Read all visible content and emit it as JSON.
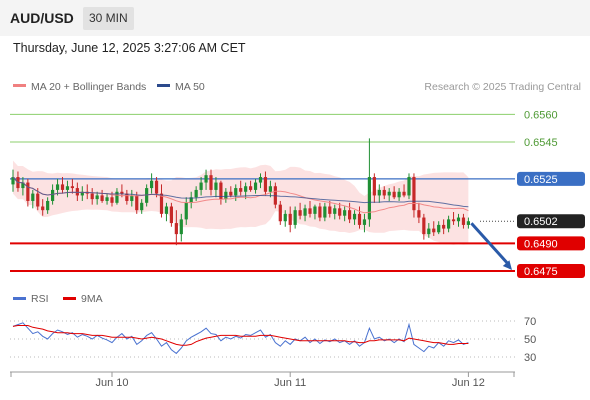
{
  "header": {
    "symbol": "AUD/USD",
    "timeframe": "30 MIN"
  },
  "datetime": "Thursday, June 12, 2025 3:27:06 AM CET",
  "credit": "Research © 2025 Trading Central",
  "colors": {
    "bollinger": "#f08080",
    "bollinger_band_fill": "#fbdddd",
    "ma50": "#2c4a8c",
    "green_level": "#8ccf6c",
    "blue_level": "#3a6fc4",
    "red_level": "#e00000",
    "candle_up": "#1f8f34",
    "candle_down": "#c62828",
    "rsi": "#4a72d0",
    "rsi_ma": "#e00000",
    "forecast_arrow": "#2a5aa8"
  },
  "chart_data": {
    "type": "candlestick",
    "symbol": "AUD/USD",
    "interval": "30 MIN",
    "legend": [
      {
        "name": "MA 20 + Bollinger Bands",
        "color": "#f08080"
      },
      {
        "name": "MA 50",
        "color": "#2c4a8c"
      }
    ],
    "y_range": [
      0.6469,
      0.657
    ],
    "levels": [
      {
        "value": "0.6560",
        "kind": "resistance",
        "color": "#8ccf6c"
      },
      {
        "value": "0.6545",
        "kind": "resistance",
        "color": "#8ccf6c"
      },
      {
        "value": "0.6525",
        "kind": "pivot",
        "color": "#3a6fc4"
      },
      {
        "value": "0.6502",
        "kind": "last_price",
        "color": "#222222"
      },
      {
        "value": "0.6490",
        "kind": "support",
        "color": "#e00000"
      },
      {
        "value": "0.6475",
        "kind": "support",
        "color": "#e00000"
      }
    ],
    "forecast": {
      "from": 0.6502,
      "to": 0.6475
    },
    "x_labels": [
      {
        "label": "Jun 10",
        "index": 20
      },
      {
        "label": "Jun 11",
        "index": 56
      },
      {
        "label": "Jun 12",
        "index": 92
      }
    ],
    "candles": [
      [
        0.6522,
        0.653,
        0.6518,
        0.6526
      ],
      [
        0.6526,
        0.6529,
        0.6518,
        0.652
      ],
      [
        0.652,
        0.6526,
        0.6516,
        0.6523
      ],
      [
        0.6523,
        0.6525,
        0.651,
        0.6513
      ],
      [
        0.6513,
        0.6519,
        0.6509,
        0.6517
      ],
      [
        0.6517,
        0.652,
        0.6508,
        0.651
      ],
      [
        0.651,
        0.6514,
        0.6505,
        0.6508
      ],
      [
        0.6508,
        0.6515,
        0.6506,
        0.6513
      ],
      [
        0.6513,
        0.6522,
        0.6511,
        0.6519
      ],
      [
        0.6519,
        0.6525,
        0.6516,
        0.6522
      ],
      [
        0.6522,
        0.6526,
        0.6517,
        0.6519
      ],
      [
        0.6519,
        0.6524,
        0.6515,
        0.6521
      ],
      [
        0.6521,
        0.6525,
        0.6517,
        0.652
      ],
      [
        0.652,
        0.6523,
        0.6513,
        0.6516
      ],
      [
        0.6516,
        0.6521,
        0.6513,
        0.6518
      ],
      [
        0.6518,
        0.6522,
        0.6514,
        0.6517
      ],
      [
        0.6517,
        0.652,
        0.6511,
        0.6514
      ],
      [
        0.6514,
        0.6518,
        0.6511,
        0.6516
      ],
      [
        0.6516,
        0.6519,
        0.6512,
        0.6513
      ],
      [
        0.6513,
        0.6517,
        0.6511,
        0.6515
      ],
      [
        0.6515,
        0.6518,
        0.651,
        0.6512
      ],
      [
        0.6512,
        0.652,
        0.6511,
        0.6518
      ],
      [
        0.6518,
        0.6522,
        0.6515,
        0.6517
      ],
      [
        0.6517,
        0.6519,
        0.6511,
        0.6513
      ],
      [
        0.6513,
        0.6519,
        0.651,
        0.6516
      ],
      [
        0.6516,
        0.6518,
        0.6506,
        0.6508
      ],
      [
        0.6508,
        0.6514,
        0.6506,
        0.6512
      ],
      [
        0.6512,
        0.6522,
        0.651,
        0.652
      ],
      [
        0.652,
        0.6528,
        0.6517,
        0.6524
      ],
      [
        0.6524,
        0.6526,
        0.6515,
        0.6517
      ],
      [
        0.6517,
        0.6522,
        0.6504,
        0.6506
      ],
      [
        0.6506,
        0.6512,
        0.6502,
        0.651
      ],
      [
        0.651,
        0.6512,
        0.6499,
        0.6501
      ],
      [
        0.6501,
        0.6508,
        0.6489,
        0.6495
      ],
      [
        0.6495,
        0.6506,
        0.6491,
        0.6503
      ],
      [
        0.6503,
        0.6515,
        0.65,
        0.6512
      ],
      [
        0.6512,
        0.6518,
        0.6509,
        0.6515
      ],
      [
        0.6515,
        0.6521,
        0.6513,
        0.6519
      ],
      [
        0.6519,
        0.6526,
        0.6516,
        0.6523
      ],
      [
        0.6523,
        0.653,
        0.6519,
        0.6527
      ],
      [
        0.6527,
        0.653,
        0.6516,
        0.6519
      ],
      [
        0.6519,
        0.6526,
        0.6515,
        0.6523
      ],
      [
        0.6523,
        0.6524,
        0.6511,
        0.6514
      ],
      [
        0.6514,
        0.652,
        0.6512,
        0.6518
      ],
      [
        0.6518,
        0.6521,
        0.6515,
        0.6516
      ],
      [
        0.6516,
        0.6522,
        0.6513,
        0.652
      ],
      [
        0.652,
        0.6524,
        0.6516,
        0.6518
      ],
      [
        0.6518,
        0.6523,
        0.6514,
        0.6521
      ],
      [
        0.6521,
        0.6524,
        0.6518,
        0.6519
      ],
      [
        0.6519,
        0.6525,
        0.6517,
        0.6523
      ],
      [
        0.6523,
        0.6528,
        0.652,
        0.6526
      ],
      [
        0.6526,
        0.6529,
        0.6516,
        0.6518
      ],
      [
        0.6518,
        0.6524,
        0.6515,
        0.6521
      ],
      [
        0.6521,
        0.6523,
        0.6509,
        0.6511
      ],
      [
        0.6511,
        0.6513,
        0.65,
        0.6502
      ],
      [
        0.6502,
        0.6508,
        0.6499,
        0.6506
      ],
      [
        0.6506,
        0.651,
        0.6496,
        0.65
      ],
      [
        0.65,
        0.651,
        0.6498,
        0.6508
      ],
      [
        0.6508,
        0.6512,
        0.6503,
        0.6505
      ],
      [
        0.6505,
        0.6511,
        0.6502,
        0.6509
      ],
      [
        0.6509,
        0.6513,
        0.6504,
        0.6506
      ],
      [
        0.6506,
        0.6511,
        0.6503,
        0.651
      ],
      [
        0.651,
        0.6512,
        0.6502,
        0.6504
      ],
      [
        0.6504,
        0.6512,
        0.6502,
        0.651
      ],
      [
        0.651,
        0.6513,
        0.6504,
        0.6506
      ],
      [
        0.6506,
        0.6511,
        0.6503,
        0.6509
      ],
      [
        0.6509,
        0.6512,
        0.6503,
        0.6505
      ],
      [
        0.6505,
        0.651,
        0.6502,
        0.6508
      ],
      [
        0.6508,
        0.6512,
        0.6501,
        0.6503
      ],
      [
        0.6503,
        0.6508,
        0.65,
        0.6506
      ],
      [
        0.6506,
        0.651,
        0.6498,
        0.65
      ],
      [
        0.65,
        0.6506,
        0.6496,
        0.6503
      ],
      [
        0.6503,
        0.6547,
        0.6499,
        0.6526
      ],
      [
        0.6526,
        0.6528,
        0.6512,
        0.6516
      ],
      [
        0.6516,
        0.6522,
        0.6512,
        0.6519
      ],
      [
        0.6519,
        0.6521,
        0.6514,
        0.6516
      ],
      [
        0.6516,
        0.652,
        0.6513,
        0.6518
      ],
      [
        0.6518,
        0.6521,
        0.6514,
        0.6515
      ],
      [
        0.6515,
        0.652,
        0.6513,
        0.6518
      ],
      [
        0.6518,
        0.6522,
        0.6515,
        0.6516
      ],
      [
        0.6516,
        0.6528,
        0.6514,
        0.6526
      ],
      [
        0.6526,
        0.6528,
        0.6504,
        0.6508
      ],
      [
        0.6508,
        0.6512,
        0.6501,
        0.6504
      ],
      [
        0.6504,
        0.6506,
        0.6492,
        0.6495
      ],
      [
        0.6495,
        0.6501,
        0.6493,
        0.6498
      ],
      [
        0.6498,
        0.6502,
        0.6494,
        0.6496
      ],
      [
        0.6496,
        0.6502,
        0.6495,
        0.65
      ],
      [
        0.65,
        0.6503,
        0.6495,
        0.6498
      ],
      [
        0.6498,
        0.6505,
        0.6496,
        0.6503
      ],
      [
        0.6503,
        0.6507,
        0.65,
        0.6502
      ],
      [
        0.6502,
        0.6506,
        0.6499,
        0.6504
      ],
      [
        0.6504,
        0.6506,
        0.6498,
        0.65
      ],
      [
        0.65,
        0.6504,
        0.6498,
        0.6502
      ]
    ],
    "rsi_panel": {
      "legend": [
        {
          "name": "RSI",
          "color": "#4a72d0"
        },
        {
          "name": "9MA",
          "color": "#e00000"
        }
      ],
      "y_ticks": [
        "70",
        "50",
        "30"
      ],
      "y_range": [
        20,
        80
      ],
      "rsi": [
        64,
        66,
        68,
        62,
        56,
        58,
        53,
        50,
        56,
        60,
        58,
        55,
        57,
        52,
        55,
        53,
        50,
        54,
        51,
        49,
        46,
        52,
        56,
        50,
        53,
        44,
        48,
        54,
        57,
        50,
        42,
        46,
        38,
        34,
        40,
        48,
        52,
        55,
        58,
        62,
        56,
        55,
        48,
        52,
        50,
        53,
        51,
        55,
        54,
        57,
        60,
        52,
        55,
        46,
        42,
        48,
        44,
        50,
        48,
        52,
        46,
        50,
        45,
        49,
        47,
        50,
        46,
        48,
        44,
        48,
        42,
        46,
        62,
        50,
        52,
        48,
        50,
        46,
        50,
        47,
        66,
        44,
        40,
        36,
        42,
        40,
        46,
        42,
        48,
        46,
        49,
        44,
        46
      ],
      "ma": [
        64,
        65,
        65,
        65,
        63,
        62,
        61,
        59,
        58,
        57,
        57,
        57,
        56,
        56,
        56,
        55,
        54,
        54,
        54,
        53,
        52,
        52,
        52,
        52,
        52,
        51,
        50,
        51,
        52,
        51,
        50,
        48,
        46,
        44,
        43,
        43,
        44,
        47,
        49,
        51,
        52,
        53,
        54,
        54,
        54,
        54,
        53,
        53,
        53,
        53,
        54,
        54,
        54,
        53,
        52,
        51,
        50,
        49,
        48,
        48,
        48,
        48,
        48,
        48,
        48,
        48,
        48,
        48,
        47,
        47,
        46,
        46,
        48,
        48,
        49,
        49,
        49,
        49,
        49,
        48,
        51,
        50,
        49,
        48,
        47,
        46,
        46,
        45,
        44,
        44,
        45,
        45,
        45
      ]
    }
  }
}
